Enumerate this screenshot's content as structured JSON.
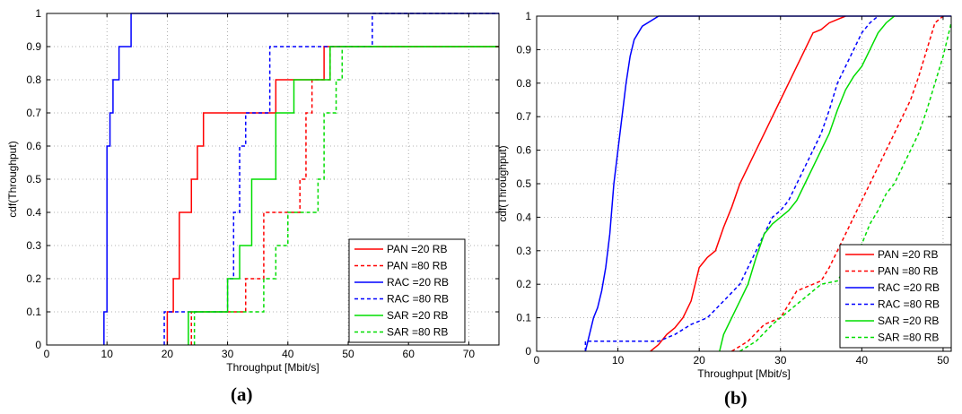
{
  "chart_data": [
    {
      "type": "line",
      "panel_label": "(a)",
      "xlabel": "Throughput [Mbit/s]",
      "ylabel": "cdf(Throughput)",
      "xlim": [
        0,
        75
      ],
      "ylim": [
        0,
        1
      ],
      "xticks": [
        0,
        10,
        20,
        30,
        40,
        50,
        60,
        70
      ],
      "yticks": [
        0,
        0.1,
        0.2,
        0.3,
        0.4,
        0.5,
        0.6,
        0.7,
        0.8,
        0.9,
        1
      ],
      "grid": true,
      "legend_position": "bottom-right",
      "series": [
        {
          "name": "PAN =20 RB",
          "color": "#ff0000",
          "dash": "solid",
          "x": [
            20,
            20,
            21,
            21,
            22,
            22,
            24,
            24,
            25,
            25,
            26,
            26,
            38,
            38,
            46,
            46,
            75
          ],
          "y": [
            0,
            0.1,
            0.1,
            0.2,
            0.2,
            0.4,
            0.4,
            0.5,
            0.5,
            0.6,
            0.6,
            0.7,
            0.7,
            0.8,
            0.8,
            0.9,
            0.9
          ]
        },
        {
          "name": "PAN =80 RB",
          "color": "#ff0000",
          "dash": "dashed",
          "x": [
            24,
            24,
            33,
            33,
            36,
            36,
            42,
            42,
            43,
            43,
            44,
            44,
            47,
            47,
            75
          ],
          "y": [
            0,
            0.1,
            0.1,
            0.2,
            0.2,
            0.4,
            0.4,
            0.5,
            0.5,
            0.7,
            0.7,
            0.8,
            0.8,
            0.9,
            0.9
          ]
        },
        {
          "name": "RAC =20 RB",
          "color": "#0000ff",
          "dash": "solid",
          "x": [
            9.5,
            9.5,
            10,
            10,
            10.5,
            10.5,
            11,
            11,
            12,
            12,
            14,
            14,
            75
          ],
          "y": [
            0,
            0.1,
            0.1,
            0.6,
            0.6,
            0.7,
            0.7,
            0.8,
            0.8,
            0.9,
            0.9,
            1,
            1
          ]
        },
        {
          "name": "RAC =80 RB",
          "color": "#0000ff",
          "dash": "dashed",
          "x": [
            19.5,
            19.5,
            30,
            30,
            31,
            31,
            32,
            32,
            33,
            33,
            37,
            37,
            40,
            40,
            54,
            54,
            75
          ],
          "y": [
            0,
            0.1,
            0.1,
            0.2,
            0.2,
            0.4,
            0.4,
            0.6,
            0.6,
            0.7,
            0.7,
            0.9,
            0.9,
            0.9,
            0.9,
            1,
            1
          ]
        },
        {
          "name": "SAR =20 RB",
          "color": "#00dd00",
          "dash": "solid",
          "x": [
            23.5,
            23.5,
            30,
            30,
            32,
            32,
            34,
            34,
            38,
            38,
            41,
            41,
            47,
            47,
            75
          ],
          "y": [
            0,
            0.1,
            0.1,
            0.2,
            0.2,
            0.3,
            0.3,
            0.5,
            0.5,
            0.7,
            0.7,
            0.8,
            0.8,
            0.9,
            0.9
          ]
        },
        {
          "name": "SAR =80 RB",
          "color": "#00dd00",
          "dash": "dashed",
          "x": [
            24.5,
            24.5,
            36,
            36,
            38,
            38,
            40,
            40,
            45,
            45,
            46,
            46,
            48,
            48,
            49,
            49,
            75
          ],
          "y": [
            0,
            0.1,
            0.1,
            0.2,
            0.2,
            0.3,
            0.3,
            0.4,
            0.4,
            0.5,
            0.5,
            0.7,
            0.7,
            0.8,
            0.8,
            0.9,
            0.9
          ]
        }
      ]
    },
    {
      "type": "line",
      "panel_label": "(b)",
      "xlabel": "Throughput [Mbit/s]",
      "ylabel": "cdf(Throughput)",
      "xlim": [
        0,
        51
      ],
      "ylim": [
        0,
        1
      ],
      "xticks": [
        0,
        10,
        20,
        30,
        40,
        50
      ],
      "yticks": [
        0,
        0.1,
        0.2,
        0.3,
        0.4,
        0.5,
        0.6,
        0.7,
        0.8,
        0.9,
        1
      ],
      "grid": true,
      "legend_position": "bottom-right",
      "series": [
        {
          "name": "PAN =20 RB",
          "color": "#ff0000",
          "dash": "solid",
          "x": [
            14,
            15,
            16,
            17,
            18,
            19,
            19.5,
            20,
            21,
            22,
            23,
            24,
            25,
            26,
            27,
            28,
            29,
            30,
            31,
            32,
            33,
            34,
            35,
            36,
            37,
            38
          ],
          "y": [
            0,
            0.02,
            0.05,
            0.07,
            0.1,
            0.15,
            0.2,
            0.25,
            0.28,
            0.3,
            0.37,
            0.43,
            0.5,
            0.55,
            0.6,
            0.65,
            0.7,
            0.75,
            0.8,
            0.85,
            0.9,
            0.95,
            0.96,
            0.98,
            0.99,
            1
          ]
        },
        {
          "name": "PAN =80 RB",
          "color": "#ff0000",
          "dash": "dashed",
          "x": [
            24,
            26,
            28,
            30,
            32,
            34,
            35,
            36,
            37,
            38,
            39,
            40,
            41,
            42,
            43,
            44,
            45,
            46,
            47,
            48,
            49,
            50
          ],
          "y": [
            0,
            0.03,
            0.08,
            0.1,
            0.18,
            0.2,
            0.21,
            0.25,
            0.3,
            0.35,
            0.4,
            0.45,
            0.5,
            0.55,
            0.6,
            0.65,
            0.7,
            0.75,
            0.82,
            0.9,
            0.98,
            1
          ]
        },
        {
          "name": "RAC =20 RB",
          "color": "#0000ff",
          "dash": "solid",
          "x": [
            6,
            6.5,
            7,
            7.5,
            8,
            8.5,
            9,
            9.5,
            10,
            10.5,
            11,
            11.5,
            12,
            13,
            15,
            51
          ],
          "y": [
            0,
            0.05,
            0.1,
            0.13,
            0.18,
            0.25,
            0.35,
            0.5,
            0.6,
            0.7,
            0.8,
            0.88,
            0.93,
            0.97,
            1,
            1
          ]
        },
        {
          "name": "RAC =80 RB",
          "color": "#0000ff",
          "dash": "dashed",
          "x": [
            6,
            6,
            15,
            17,
            19,
            21,
            23,
            25,
            26,
            27,
            28,
            29,
            30,
            31,
            32,
            33,
            34,
            35,
            36,
            37,
            38,
            39,
            40,
            41,
            42
          ],
          "y": [
            0,
            0.03,
            0.03,
            0.05,
            0.08,
            0.1,
            0.15,
            0.2,
            0.25,
            0.3,
            0.35,
            0.4,
            0.42,
            0.45,
            0.5,
            0.55,
            0.6,
            0.65,
            0.72,
            0.8,
            0.85,
            0.9,
            0.95,
            0.98,
            1
          ]
        },
        {
          "name": "SAR =20 RB",
          "color": "#00dd00",
          "dash": "solid",
          "x": [
            22.5,
            23,
            24,
            25,
            26,
            27,
            28,
            29,
            30,
            31,
            32,
            33,
            34,
            35,
            36,
            37,
            38,
            39,
            40,
            41,
            42,
            43,
            44
          ],
          "y": [
            0,
            0.05,
            0.1,
            0.15,
            0.2,
            0.28,
            0.35,
            0.38,
            0.4,
            0.42,
            0.45,
            0.5,
            0.55,
            0.6,
            0.65,
            0.72,
            0.78,
            0.82,
            0.85,
            0.9,
            0.95,
            0.98,
            1
          ]
        },
        {
          "name": "SAR =80 RB",
          "color": "#00dd00",
          "dash": "dashed",
          "x": [
            25,
            27,
            29,
            31,
            33,
            35,
            37,
            38,
            39,
            40,
            41,
            42,
            43,
            44,
            45,
            46,
            47,
            48,
            49,
            50,
            51
          ],
          "y": [
            0,
            0.03,
            0.08,
            0.12,
            0.16,
            0.2,
            0.21,
            0.25,
            0.28,
            0.32,
            0.38,
            0.42,
            0.47,
            0.5,
            0.55,
            0.6,
            0.65,
            0.72,
            0.8,
            0.88,
            0.98
          ]
        }
      ]
    }
  ]
}
